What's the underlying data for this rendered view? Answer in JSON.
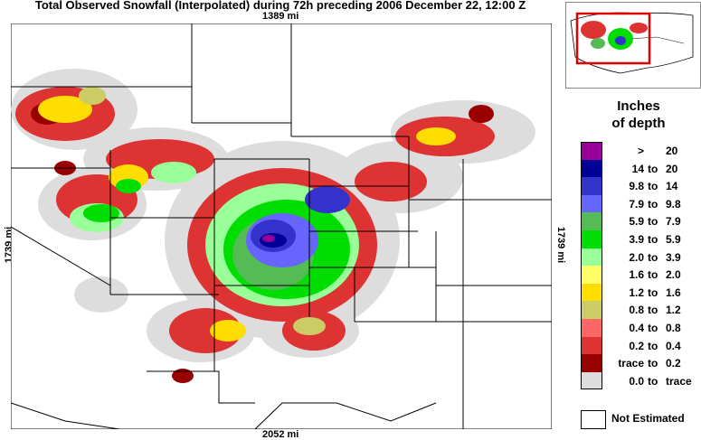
{
  "title": "Total Observed Snowfall (Interpolated) during 72h preceding 2006 December 22, 12:00 Z",
  "scale": {
    "top": "1389 mi",
    "bottom": "2052 mi",
    "left": "1739 mi",
    "right": "1739 mi"
  },
  "legend": {
    "title_line1": "Inches",
    "title_line2": "of depth",
    "items": [
      {
        "lo": ">",
        "sep": "",
        "hi": "20",
        "color": "#990099"
      },
      {
        "lo": "14",
        "sep": "to",
        "hi": "20",
        "color": "#000099"
      },
      {
        "lo": "9.8",
        "sep": "to",
        "hi": "14",
        "color": "#3333cc"
      },
      {
        "lo": "7.9",
        "sep": "to",
        "hi": "9.8",
        "color": "#6666ff"
      },
      {
        "lo": "5.9",
        "sep": "to",
        "hi": "7.9",
        "color": "#55bb55"
      },
      {
        "lo": "3.9",
        "sep": "to",
        "hi": "5.9",
        "color": "#00dd00"
      },
      {
        "lo": "2.0",
        "sep": "to",
        "hi": "3.9",
        "color": "#99ff99"
      },
      {
        "lo": "1.6",
        "sep": "to",
        "hi": "2.0",
        "color": "#ffff66"
      },
      {
        "lo": "1.2",
        "sep": "to",
        "hi": "1.6",
        "color": "#ffdd00"
      },
      {
        "lo": "0.8",
        "sep": "to",
        "hi": "1.2",
        "color": "#cccc66"
      },
      {
        "lo": "0.4",
        "sep": "to",
        "hi": "0.8",
        "color": "#ff6666"
      },
      {
        "lo": "0.2",
        "sep": "to",
        "hi": "0.4",
        "color": "#dd3333"
      },
      {
        "lo": "trace",
        "sep": "to",
        "hi": "0.2",
        "color": "#990000"
      },
      {
        "lo": "0.0",
        "sep": "to",
        "hi": "trace",
        "color": "#dddddd"
      }
    ],
    "not_estimated": "Not Estimated"
  }
}
